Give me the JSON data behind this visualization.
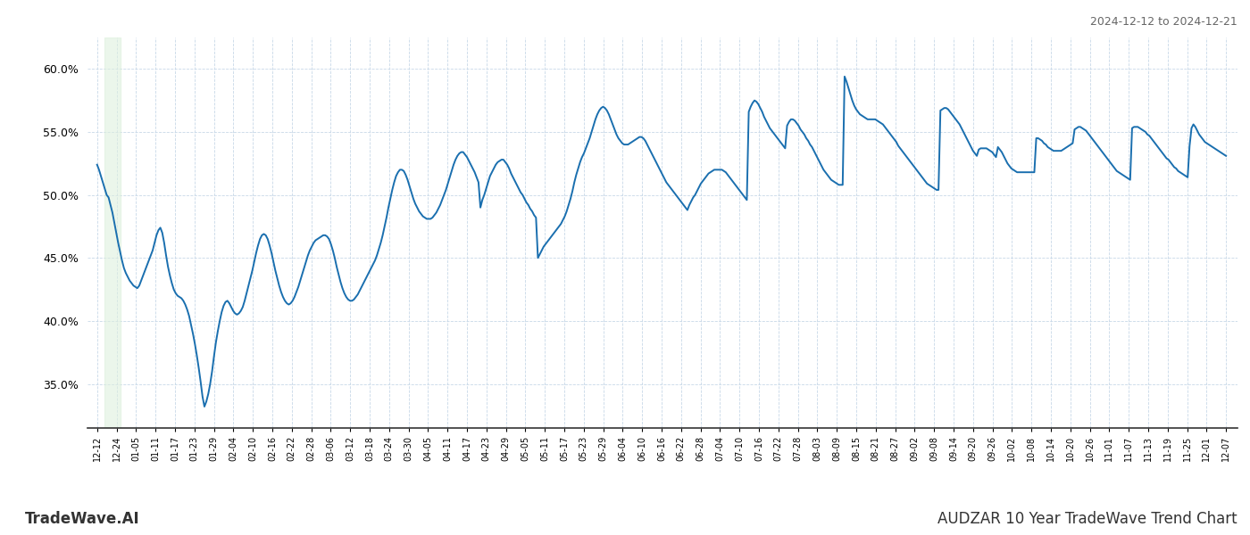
{
  "title_right": "2024-12-12 to 2024-12-21",
  "title_bottom_left": "TradeWave.AI",
  "title_bottom_right": "AUDZAR 10 Year TradeWave Trend Chart",
  "line_color": "#1a6faf",
  "line_width": 1.4,
  "bg_color": "#ffffff",
  "grid_color": "#c8d8e8",
  "axis_color": "#333333",
  "shade_color": "#dff0df",
  "shade_alpha": 0.6,
  "ylim": [
    0.315,
    0.625
  ],
  "yticks": [
    0.35,
    0.4,
    0.45,
    0.5,
    0.55,
    0.6
  ],
  "xtick_labels": [
    "12-12",
    "12-24",
    "01-05",
    "01-11",
    "01-17",
    "01-23",
    "01-29",
    "02-04",
    "02-10",
    "02-16",
    "02-22",
    "02-28",
    "03-06",
    "03-12",
    "03-18",
    "03-24",
    "03-30",
    "04-05",
    "04-11",
    "04-17",
    "04-23",
    "04-29",
    "05-05",
    "05-11",
    "05-17",
    "05-23",
    "05-29",
    "06-04",
    "06-10",
    "06-16",
    "06-22",
    "06-28",
    "07-04",
    "07-10",
    "07-16",
    "07-22",
    "07-28",
    "08-03",
    "08-09",
    "08-15",
    "08-21",
    "08-27",
    "09-02",
    "09-08",
    "09-14",
    "09-20",
    "09-26",
    "10-02",
    "10-08",
    "10-14",
    "10-20",
    "10-26",
    "11-01",
    "11-07",
    "11-13",
    "11-19",
    "11-25",
    "12-01",
    "12-07"
  ],
  "shade_x_start_label": "12-18",
  "shade_x_end_label": "12-24",
  "values": [
    0.524,
    0.52,
    0.515,
    0.51,
    0.505,
    0.5,
    0.498,
    0.492,
    0.486,
    0.478,
    0.47,
    0.462,
    0.455,
    0.448,
    0.442,
    0.438,
    0.435,
    0.432,
    0.43,
    0.428,
    0.427,
    0.426,
    0.428,
    0.432,
    0.436,
    0.44,
    0.444,
    0.448,
    0.452,
    0.456,
    0.462,
    0.468,
    0.472,
    0.474,
    0.47,
    0.462,
    0.452,
    0.443,
    0.436,
    0.43,
    0.425,
    0.422,
    0.42,
    0.419,
    0.418,
    0.416,
    0.413,
    0.409,
    0.404,
    0.397,
    0.39,
    0.382,
    0.373,
    0.363,
    0.352,
    0.34,
    0.332,
    0.336,
    0.342,
    0.35,
    0.36,
    0.372,
    0.383,
    0.392,
    0.4,
    0.407,
    0.412,
    0.415,
    0.416,
    0.414,
    0.411,
    0.408,
    0.406,
    0.405,
    0.406,
    0.408,
    0.411,
    0.416,
    0.422,
    0.428,
    0.434,
    0.44,
    0.447,
    0.454,
    0.46,
    0.465,
    0.468,
    0.469,
    0.468,
    0.465,
    0.46,
    0.454,
    0.447,
    0.44,
    0.434,
    0.428,
    0.423,
    0.419,
    0.416,
    0.414,
    0.413,
    0.414,
    0.416,
    0.419,
    0.423,
    0.427,
    0.432,
    0.437,
    0.442,
    0.447,
    0.452,
    0.456,
    0.459,
    0.462,
    0.464,
    0.465,
    0.466,
    0.467,
    0.468,
    0.468,
    0.467,
    0.465,
    0.461,
    0.456,
    0.45,
    0.443,
    0.437,
    0.431,
    0.426,
    0.422,
    0.419,
    0.417,
    0.416,
    0.416,
    0.417,
    0.419,
    0.421,
    0.424,
    0.427,
    0.43,
    0.433,
    0.436,
    0.439,
    0.442,
    0.445,
    0.448,
    0.452,
    0.457,
    0.462,
    0.468,
    0.475,
    0.482,
    0.49,
    0.497,
    0.504,
    0.51,
    0.515,
    0.518,
    0.52,
    0.52,
    0.519,
    0.516,
    0.512,
    0.507,
    0.502,
    0.497,
    0.493,
    0.49,
    0.487,
    0.485,
    0.483,
    0.482,
    0.481,
    0.481,
    0.481,
    0.482,
    0.484,
    0.486,
    0.489,
    0.492,
    0.496,
    0.5,
    0.504,
    0.509,
    0.514,
    0.519,
    0.524,
    0.528,
    0.531,
    0.533,
    0.534,
    0.534,
    0.532,
    0.53,
    0.527,
    0.524,
    0.521,
    0.518,
    0.514,
    0.51,
    0.49,
    0.496,
    0.5,
    0.505,
    0.51,
    0.515,
    0.518,
    0.521,
    0.524,
    0.526,
    0.527,
    0.528,
    0.528,
    0.526,
    0.524,
    0.521,
    0.517,
    0.514,
    0.511,
    0.508,
    0.505,
    0.502,
    0.5,
    0.497,
    0.494,
    0.492,
    0.489,
    0.487,
    0.484,
    0.482,
    0.45,
    0.453,
    0.456,
    0.459,
    0.461,
    0.463,
    0.465,
    0.467,
    0.469,
    0.471,
    0.473,
    0.475,
    0.477,
    0.48,
    0.483,
    0.487,
    0.492,
    0.497,
    0.503,
    0.51,
    0.516,
    0.521,
    0.526,
    0.53,
    0.533,
    0.537,
    0.541,
    0.545,
    0.55,
    0.555,
    0.56,
    0.564,
    0.567,
    0.569,
    0.57,
    0.569,
    0.567,
    0.564,
    0.56,
    0.556,
    0.552,
    0.548,
    0.545,
    0.543,
    0.541,
    0.54,
    0.54,
    0.54,
    0.541,
    0.542,
    0.543,
    0.544,
    0.545,
    0.546,
    0.546,
    0.545,
    0.543,
    0.54,
    0.537,
    0.534,
    0.531,
    0.528,
    0.525,
    0.522,
    0.519,
    0.516,
    0.513,
    0.51,
    0.508,
    0.506,
    0.504,
    0.502,
    0.5,
    0.498,
    0.496,
    0.494,
    0.492,
    0.49,
    0.488,
    0.492,
    0.495,
    0.498,
    0.5,
    0.503,
    0.506,
    0.509,
    0.511,
    0.513,
    0.515,
    0.517,
    0.518,
    0.519,
    0.52,
    0.52,
    0.52,
    0.52,
    0.52,
    0.519,
    0.518,
    0.516,
    0.514,
    0.512,
    0.51,
    0.508,
    0.506,
    0.504,
    0.502,
    0.5,
    0.498,
    0.496,
    0.566,
    0.57,
    0.573,
    0.575,
    0.574,
    0.572,
    0.569,
    0.566,
    0.562,
    0.559,
    0.556,
    0.553,
    0.551,
    0.549,
    0.547,
    0.545,
    0.543,
    0.541,
    0.539,
    0.537,
    0.555,
    0.558,
    0.56,
    0.56,
    0.559,
    0.557,
    0.555,
    0.552,
    0.55,
    0.548,
    0.545,
    0.543,
    0.54,
    0.538,
    0.535,
    0.532,
    0.529,
    0.526,
    0.523,
    0.52,
    0.518,
    0.516,
    0.514,
    0.512,
    0.511,
    0.51,
    0.509,
    0.508,
    0.508,
    0.508,
    0.594,
    0.59,
    0.585,
    0.58,
    0.575,
    0.571,
    0.568,
    0.566,
    0.564,
    0.563,
    0.562,
    0.561,
    0.56,
    0.56,
    0.56,
    0.56,
    0.56,
    0.559,
    0.558,
    0.557,
    0.556,
    0.554,
    0.552,
    0.55,
    0.548,
    0.546,
    0.544,
    0.542,
    0.539,
    0.537,
    0.535,
    0.533,
    0.531,
    0.529,
    0.527,
    0.525,
    0.523,
    0.521,
    0.519,
    0.517,
    0.515,
    0.513,
    0.511,
    0.509,
    0.508,
    0.507,
    0.506,
    0.505,
    0.504,
    0.504,
    0.567,
    0.568,
    0.569,
    0.569,
    0.568,
    0.566,
    0.564,
    0.562,
    0.56,
    0.558,
    0.556,
    0.553,
    0.55,
    0.547,
    0.544,
    0.541,
    0.538,
    0.535,
    0.533,
    0.531,
    0.536,
    0.537,
    0.537,
    0.537,
    0.537,
    0.536,
    0.535,
    0.534,
    0.532,
    0.53,
    0.538,
    0.536,
    0.534,
    0.531,
    0.528,
    0.525,
    0.523,
    0.521,
    0.52,
    0.519,
    0.518,
    0.518,
    0.518,
    0.518,
    0.518,
    0.518,
    0.518,
    0.518,
    0.518,
    0.518,
    0.545,
    0.545,
    0.544,
    0.543,
    0.541,
    0.54,
    0.538,
    0.537,
    0.536,
    0.535,
    0.535,
    0.535,
    0.535,
    0.535,
    0.536,
    0.537,
    0.538,
    0.539,
    0.54,
    0.541,
    0.552,
    0.553,
    0.554,
    0.554,
    0.553,
    0.552,
    0.551,
    0.549,
    0.547,
    0.545,
    0.543,
    0.541,
    0.539,
    0.537,
    0.535,
    0.533,
    0.531,
    0.529,
    0.527,
    0.525,
    0.523,
    0.521,
    0.519,
    0.518,
    0.517,
    0.516,
    0.515,
    0.514,
    0.513,
    0.512,
    0.553,
    0.554,
    0.554,
    0.554,
    0.553,
    0.552,
    0.551,
    0.55,
    0.548,
    0.547,
    0.545,
    0.543,
    0.541,
    0.539,
    0.537,
    0.535,
    0.533,
    0.531,
    0.529,
    0.528,
    0.526,
    0.524,
    0.522,
    0.521,
    0.519,
    0.518,
    0.517,
    0.516,
    0.515,
    0.514,
    0.539,
    0.553,
    0.556,
    0.554,
    0.551,
    0.548,
    0.546,
    0.544,
    0.542,
    0.541,
    0.54,
    0.539,
    0.538,
    0.537,
    0.536,
    0.535,
    0.534,
    0.533,
    0.532,
    0.531
  ]
}
